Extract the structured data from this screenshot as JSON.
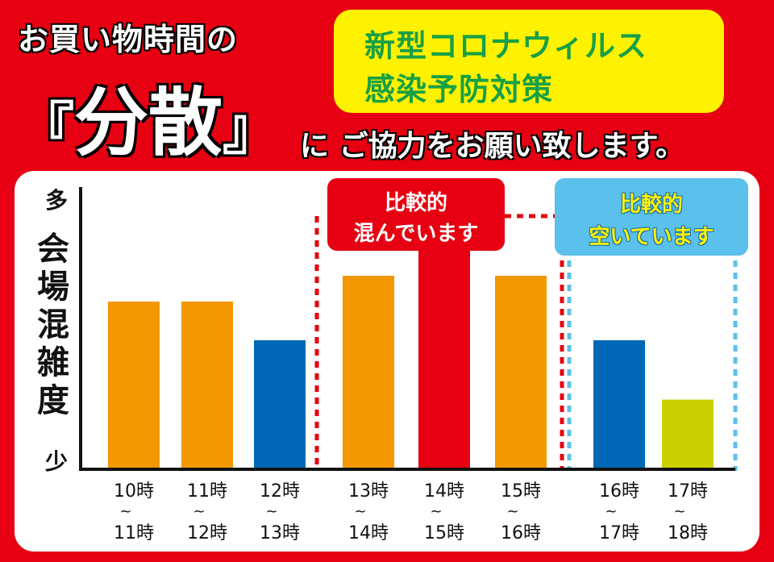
{
  "header": {
    "line1": "お買い物時間の",
    "bracket_left": "『",
    "keyword": "分散",
    "bracket_right": "』",
    "line3_particle": "に",
    "line3": "ご協力をお願い致します。"
  },
  "notice": {
    "line1": "新型コロナウィルス",
    "line2": "感染予防対策"
  },
  "annotations": {
    "busy_line1": "比較的",
    "busy_line2": "混んでいます",
    "free_line1": "比較的",
    "free_line2": "空いています"
  },
  "colors": {
    "background": "#e60012",
    "orange": "#f39800",
    "red": "#e60012",
    "blue": "#0068b7",
    "yellowgreen": "#c9d200",
    "notice_bg": "#fff200",
    "notice_text": "#18a046",
    "free_box": "#5bc0eb"
  },
  "chart_data": {
    "type": "bar",
    "ylabel": "会場混雑度",
    "y_top_label": "多",
    "y_bottom_label": "少",
    "ylim": [
      0,
      10
    ],
    "categories": [
      {
        "from": "10時",
        "sep": "~",
        "to": "11時"
      },
      {
        "from": "11時",
        "sep": "~",
        "to": "12時"
      },
      {
        "from": "12時",
        "sep": "~",
        "to": "13時"
      },
      {
        "from": "13時",
        "sep": "~",
        "to": "14時"
      },
      {
        "from": "14時",
        "sep": "~",
        "to": "15時"
      },
      {
        "from": "15時",
        "sep": "~",
        "to": "16時"
      },
      {
        "from": "16時",
        "sep": "~",
        "to": "17時"
      },
      {
        "from": "17時",
        "sep": "~",
        "to": "18時"
      }
    ],
    "values": [
      6.5,
      6.5,
      5.0,
      7.5,
      8.8,
      7.5,
      5.0,
      2.7
    ],
    "bar_colors": [
      "#f39800",
      "#f39800",
      "#0068b7",
      "#f39800",
      "#e60012",
      "#f39800",
      "#0068b7",
      "#c9d200"
    ],
    "grid": false,
    "busy_range": [
      3,
      5
    ],
    "free_range": [
      6,
      7
    ]
  }
}
